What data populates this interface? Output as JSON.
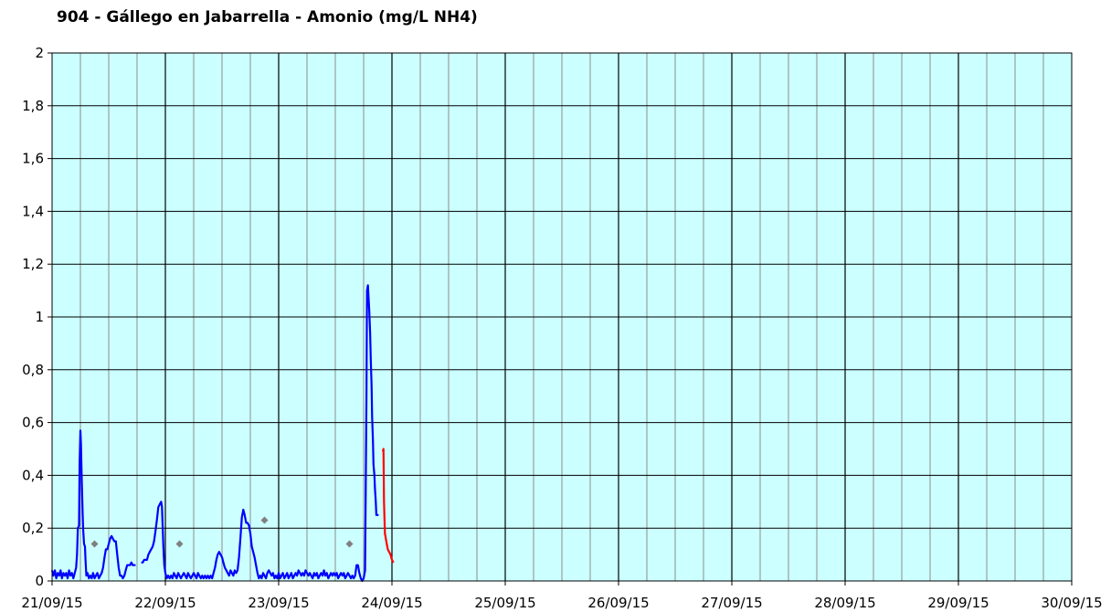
{
  "chart_data": {
    "type": "line",
    "title": "904 - Gállego en Jabarrella - Amonio (mg/L NH4)",
    "xlabel": "",
    "ylabel": "",
    "x_tick_labels": [
      "21/09/15",
      "22/09/15",
      "23/09/15",
      "24/09/15",
      "25/09/15",
      "26/09/15",
      "27/09/15",
      "28/09/15",
      "29/09/15",
      "30/09/15"
    ],
    "y_tick_labels": [
      "0",
      "0,2",
      "0,4",
      "0,6",
      "0,8",
      "1",
      "1,2",
      "1,4",
      "1,6",
      "1,8",
      "2"
    ],
    "x_range_days": [
      0,
      9
    ],
    "ylim": [
      0,
      2
    ],
    "grid": true,
    "legend": "none",
    "colors": {
      "plot_background": "#ccffff",
      "minor_grid": "#8c8c8c",
      "major_grid": "#000000",
      "series_primary": "#0000ff",
      "series_secondary": "#ff0000",
      "markers": "#808080"
    },
    "series": [
      {
        "color": "#0000ff",
        "segments": [
          [
            [
              0.0,
              0.04
            ],
            [
              0.05,
              0.02
            ],
            [
              0.1,
              0.04
            ],
            [
              0.15,
              0.01
            ],
            [
              0.2,
              0.03
            ],
            [
              0.25,
              0.02
            ],
            [
              0.3,
              0.04
            ],
            [
              0.35,
              0.01
            ],
            [
              0.4,
              0.03
            ],
            [
              0.45,
              0.02
            ],
            [
              0.5,
              0.03
            ],
            [
              0.55,
              0.01
            ],
            [
              0.6,
              0.04
            ],
            [
              0.65,
              0.02
            ],
            [
              0.7,
              0.03
            ],
            [
              0.75,
              0.01
            ],
            [
              0.8,
              0.03
            ],
            [
              0.85,
              0.05
            ],
            [
              0.88,
              0.1
            ],
            [
              0.91,
              0.2
            ],
            [
              0.95,
              0.21
            ],
            [
              0.97,
              0.44
            ],
            [
              1.0,
              0.57
            ],
            [
              1.02,
              0.52
            ],
            [
              1.05,
              0.38
            ],
            [
              1.08,
              0.25
            ],
            [
              1.1,
              0.19
            ],
            [
              1.13,
              0.14
            ],
            [
              1.16,
              0.13
            ],
            [
              1.18,
              0.08
            ],
            [
              1.21,
              0.02
            ],
            [
              1.25,
              0.03
            ],
            [
              1.3,
              0.01
            ],
            [
              1.35,
              0.02
            ],
            [
              1.4,
              0.01
            ],
            [
              1.45,
              0.03
            ],
            [
              1.5,
              0.01
            ],
            [
              1.55,
              0.02
            ],
            [
              1.6,
              0.03
            ],
            [
              1.65,
              0.01
            ],
            [
              1.7,
              0.02
            ],
            [
              1.75,
              0.03
            ],
            [
              1.8,
              0.05
            ],
            [
              1.85,
              0.09
            ],
            [
              1.9,
              0.12
            ],
            [
              1.95,
              0.12
            ],
            [
              2.0,
              0.14
            ],
            [
              2.05,
              0.16
            ],
            [
              2.1,
              0.17
            ],
            [
              2.15,
              0.16
            ],
            [
              2.2,
              0.15
            ],
            [
              2.25,
              0.15
            ],
            [
              2.3,
              0.1
            ],
            [
              2.35,
              0.05
            ],
            [
              2.4,
              0.02
            ],
            [
              2.45,
              0.02
            ],
            [
              2.5,
              0.01
            ],
            [
              2.55,
              0.02
            ],
            [
              2.6,
              0.04
            ],
            [
              2.65,
              0.06
            ],
            [
              2.7,
              0.06
            ],
            [
              2.75,
              0.06
            ],
            [
              2.8,
              0.07
            ],
            [
              2.85,
              0.06
            ],
            [
              2.9,
              0.06
            ],
            [
              2.95,
              0.06
            ]
          ],
          [
            [
              3.15,
              0.07
            ],
            [
              3.2,
              0.07
            ],
            [
              3.25,
              0.08
            ],
            [
              3.3,
              0.08
            ],
            [
              3.35,
              0.08
            ],
            [
              3.4,
              0.1
            ],
            [
              3.45,
              0.11
            ],
            [
              3.5,
              0.12
            ],
            [
              3.55,
              0.13
            ],
            [
              3.6,
              0.15
            ],
            [
              3.65,
              0.19
            ],
            [
              3.7,
              0.23
            ],
            [
              3.75,
              0.28
            ],
            [
              3.8,
              0.29
            ],
            [
              3.85,
              0.3
            ],
            [
              3.88,
              0.28
            ],
            [
              3.9,
              0.22
            ],
            [
              3.93,
              0.13
            ],
            [
              3.96,
              0.06
            ],
            [
              4.0,
              0.03
            ],
            [
              4.05,
              0.01
            ],
            [
              4.1,
              0.02
            ],
            [
              4.15,
              0.01
            ],
            [
              4.2,
              0.02
            ],
            [
              4.25,
              0.01
            ],
            [
              4.3,
              0.03
            ],
            [
              4.35,
              0.02
            ],
            [
              4.4,
              0.01
            ],
            [
              4.45,
              0.03
            ],
            [
              4.5,
              0.02
            ],
            [
              4.55,
              0.01
            ],
            [
              4.6,
              0.02
            ],
            [
              4.65,
              0.03
            ],
            [
              4.7,
              0.02
            ],
            [
              4.75,
              0.01
            ],
            [
              4.8,
              0.03
            ],
            [
              4.85,
              0.02
            ],
            [
              4.9,
              0.01
            ],
            [
              4.95,
              0.02
            ],
            [
              5.0,
              0.03
            ],
            [
              5.05,
              0.02
            ],
            [
              5.1,
              0.01
            ],
            [
              5.15,
              0.03
            ],
            [
              5.2,
              0.02
            ],
            [
              5.25,
              0.01
            ],
            [
              5.3,
              0.02
            ],
            [
              5.35,
              0.01
            ],
            [
              5.4,
              0.02
            ],
            [
              5.45,
              0.01
            ],
            [
              5.5,
              0.02
            ],
            [
              5.55,
              0.01
            ],
            [
              5.6,
              0.02
            ],
            [
              5.65,
              0.01
            ],
            [
              5.7,
              0.03
            ],
            [
              5.75,
              0.05
            ],
            [
              5.8,
              0.08
            ],
            [
              5.85,
              0.1
            ],
            [
              5.9,
              0.11
            ],
            [
              5.95,
              0.1
            ],
            [
              6.0,
              0.09
            ],
            [
              6.05,
              0.07
            ],
            [
              6.1,
              0.05
            ],
            [
              6.15,
              0.04
            ],
            [
              6.2,
              0.03
            ],
            [
              6.25,
              0.02
            ],
            [
              6.3,
              0.04
            ],
            [
              6.35,
              0.03
            ],
            [
              6.4,
              0.02
            ],
            [
              6.45,
              0.04
            ],
            [
              6.5,
              0.03
            ],
            [
              6.55,
              0.04
            ],
            [
              6.6,
              0.09
            ],
            [
              6.65,
              0.16
            ],
            [
              6.7,
              0.24
            ],
            [
              6.75,
              0.27
            ],
            [
              6.8,
              0.25
            ],
            [
              6.85,
              0.22
            ],
            [
              6.9,
              0.22
            ],
            [
              6.95,
              0.21
            ],
            [
              7.0,
              0.18
            ],
            [
              7.05,
              0.13
            ],
            [
              7.1,
              0.11
            ],
            [
              7.15,
              0.09
            ],
            [
              7.2,
              0.06
            ],
            [
              7.25,
              0.03
            ],
            [
              7.3,
              0.01
            ],
            [
              7.35,
              0.02
            ],
            [
              7.4,
              0.01
            ],
            [
              7.45,
              0.03
            ],
            [
              7.5,
              0.02
            ],
            [
              7.55,
              0.01
            ],
            [
              7.6,
              0.03
            ],
            [
              7.65,
              0.04
            ],
            [
              7.7,
              0.03
            ],
            [
              7.75,
              0.02
            ],
            [
              7.8,
              0.03
            ],
            [
              7.85,
              0.01
            ],
            [
              7.9,
              0.02
            ],
            [
              7.95,
              0.01
            ],
            [
              8.0,
              0.03
            ],
            [
              8.05,
              0.01
            ],
            [
              8.1,
              0.02
            ],
            [
              8.15,
              0.03
            ],
            [
              8.2,
              0.01
            ],
            [
              8.25,
              0.02
            ],
            [
              8.3,
              0.03
            ],
            [
              8.35,
              0.01
            ],
            [
              8.4,
              0.02
            ],
            [
              8.45,
              0.03
            ],
            [
              8.5,
              0.01
            ],
            [
              8.55,
              0.02
            ],
            [
              8.6,
              0.03
            ],
            [
              8.65,
              0.02
            ],
            [
              8.7,
              0.04
            ],
            [
              8.75,
              0.03
            ],
            [
              8.8,
              0.02
            ],
            [
              8.85,
              0.03
            ],
            [
              8.9,
              0.02
            ],
            [
              8.95,
              0.04
            ],
            [
              9.0,
              0.03
            ],
            [
              9.05,
              0.02
            ],
            [
              9.1,
              0.03
            ],
            [
              9.15,
              0.02
            ],
            [
              9.2,
              0.01
            ],
            [
              9.25,
              0.03
            ],
            [
              9.3,
              0.02
            ],
            [
              9.35,
              0.03
            ],
            [
              9.4,
              0.01
            ],
            [
              9.45,
              0.02
            ],
            [
              9.5,
              0.03
            ],
            [
              9.55,
              0.02
            ],
            [
              9.6,
              0.04
            ],
            [
              9.65,
              0.02
            ],
            [
              9.7,
              0.03
            ],
            [
              9.75,
              0.01
            ],
            [
              9.8,
              0.02
            ],
            [
              9.85,
              0.03
            ],
            [
              9.9,
              0.02
            ],
            [
              9.95,
              0.03
            ],
            [
              10.0,
              0.02
            ],
            [
              10.05,
              0.03
            ],
            [
              10.1,
              0.01
            ],
            [
              10.15,
              0.02
            ],
            [
              10.2,
              0.03
            ],
            [
              10.25,
              0.02
            ],
            [
              10.3,
              0.03
            ],
            [
              10.35,
              0.01
            ],
            [
              10.4,
              0.02
            ],
            [
              10.45,
              0.03
            ],
            [
              10.5,
              0.02
            ],
            [
              10.55,
              0.01
            ],
            [
              10.6,
              0.02
            ],
            [
              10.65,
              0.01
            ],
            [
              10.7,
              0.02
            ],
            [
              10.75,
              0.06
            ],
            [
              10.8,
              0.06
            ],
            [
              10.85,
              0.03
            ],
            [
              10.9,
              0.01
            ],
            [
              10.95,
              0.0
            ],
            [
              11.0,
              0.01
            ],
            [
              11.05,
              0.04
            ],
            [
              11.1,
              0.7
            ],
            [
              11.12,
              1.1
            ],
            [
              11.15,
              1.12
            ],
            [
              11.17,
              1.08
            ],
            [
              11.2,
              1.02
            ],
            [
              11.23,
              0.94
            ],
            [
              11.25,
              0.84
            ],
            [
              11.28,
              0.74
            ],
            [
              11.3,
              0.62
            ],
            [
              11.33,
              0.53
            ],
            [
              11.35,
              0.44
            ],
            [
              11.38,
              0.4
            ],
            [
              11.4,
              0.35
            ],
            [
              11.43,
              0.3
            ],
            [
              11.45,
              0.25
            ],
            [
              11.5,
              0.25
            ],
            [
              11.53,
              0.25
            ]
          ]
        ]
      },
      {
        "color": "#ff0000",
        "segments": [
          [
            [
              11.68,
              0.49
            ],
            [
              11.7,
              0.5
            ],
            [
              11.72,
              0.3
            ],
            [
              11.75,
              0.18
            ],
            [
              11.8,
              0.15
            ],
            [
              11.85,
              0.12
            ],
            [
              11.9,
              0.11
            ],
            [
              11.95,
              0.1
            ],
            [
              12.0,
              0.08
            ],
            [
              12.05,
              0.07
            ]
          ]
        ]
      }
    ],
    "markers": [
      [
        1.5,
        0.14
      ],
      [
        4.5,
        0.14
      ],
      [
        7.5,
        0.23
      ],
      [
        10.5,
        0.14
      ]
    ]
  }
}
